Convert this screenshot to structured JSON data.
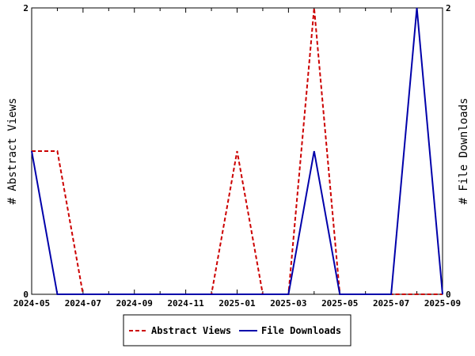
{
  "chart_data": {
    "type": "line",
    "x": [
      "2024-05",
      "2024-06",
      "2024-07",
      "2024-08",
      "2024-09",
      "2024-10",
      "2024-11",
      "2024-12",
      "2025-01",
      "2025-02",
      "2025-03",
      "2025-04",
      "2025-05",
      "2025-06",
      "2025-07",
      "2025-08",
      "2025-09"
    ],
    "x_tick_labels": [
      "2024-05",
      "2024-07",
      "2024-09",
      "2024-11",
      "2025-01",
      "2025-03",
      "2025-05",
      "2025-07",
      "2025-09"
    ],
    "series": [
      {
        "name": "Abstract Views",
        "axis": "left",
        "color": "#cc0000",
        "dash": "dashed",
        "values": [
          1,
          1,
          0,
          0,
          0,
          0,
          0,
          0,
          1,
          0,
          0,
          2,
          0,
          0,
          0,
          0,
          0
        ]
      },
      {
        "name": "File Downloads",
        "axis": "right",
        "color": "#0000aa",
        "dash": "solid",
        "values": [
          1,
          0,
          0,
          0,
          0,
          0,
          0,
          0,
          0,
          0,
          0,
          1,
          0,
          0,
          0,
          2,
          0
        ]
      }
    ],
    "ylabel_left": "# Abstract Views",
    "ylabel_right": "# File Downloads",
    "ylim": [
      0,
      2
    ],
    "y_tick_labels_left": [
      "0",
      "2"
    ],
    "y_tick_labels_right": [
      "0",
      "2"
    ],
    "legend_position": "bottom-center",
    "grid": false
  }
}
